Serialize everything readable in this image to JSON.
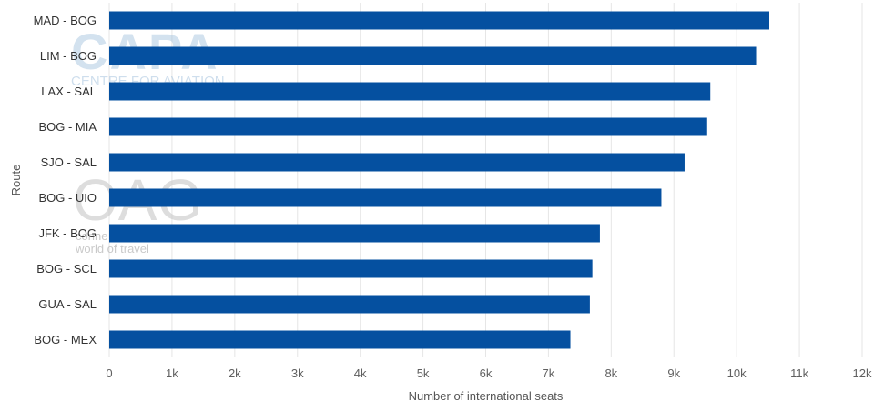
{
  "watermarks": {
    "capa_logo": "CAPA",
    "capa_sub": "CENTRE FOR AVIATION",
    "oag_logo": "OAG",
    "oag_line1": "conne",
    "oag_line2": "world of travel"
  },
  "chart_data": {
    "type": "bar",
    "orientation": "horizontal",
    "title": "",
    "xlabel": "Number of international seats",
    "ylabel": "Route",
    "xlim": [
      0,
      12000
    ],
    "x_ticks": [
      0,
      1000,
      2000,
      3000,
      4000,
      5000,
      6000,
      7000,
      8000,
      9000,
      10000,
      11000,
      12000
    ],
    "x_tick_labels": [
      "0",
      "1k",
      "2k",
      "3k",
      "4k",
      "5k",
      "6k",
      "7k",
      "8k",
      "9k",
      "10k",
      "11k",
      "12k"
    ],
    "grid": "vertical",
    "legend": "none",
    "bar_color": "#0550a0",
    "categories": [
      "MAD - BOG",
      "LIM - BOG",
      "LAX - SAL",
      "BOG - MIA",
      "SJO - SAL",
      "BOG - UIO",
      "JFK - BOG",
      "BOG - SCL",
      "GUA - SAL",
      "BOG - MEX"
    ],
    "values": [
      10520,
      10310,
      9580,
      9530,
      9170,
      8800,
      7820,
      7700,
      7660,
      7350
    ]
  }
}
